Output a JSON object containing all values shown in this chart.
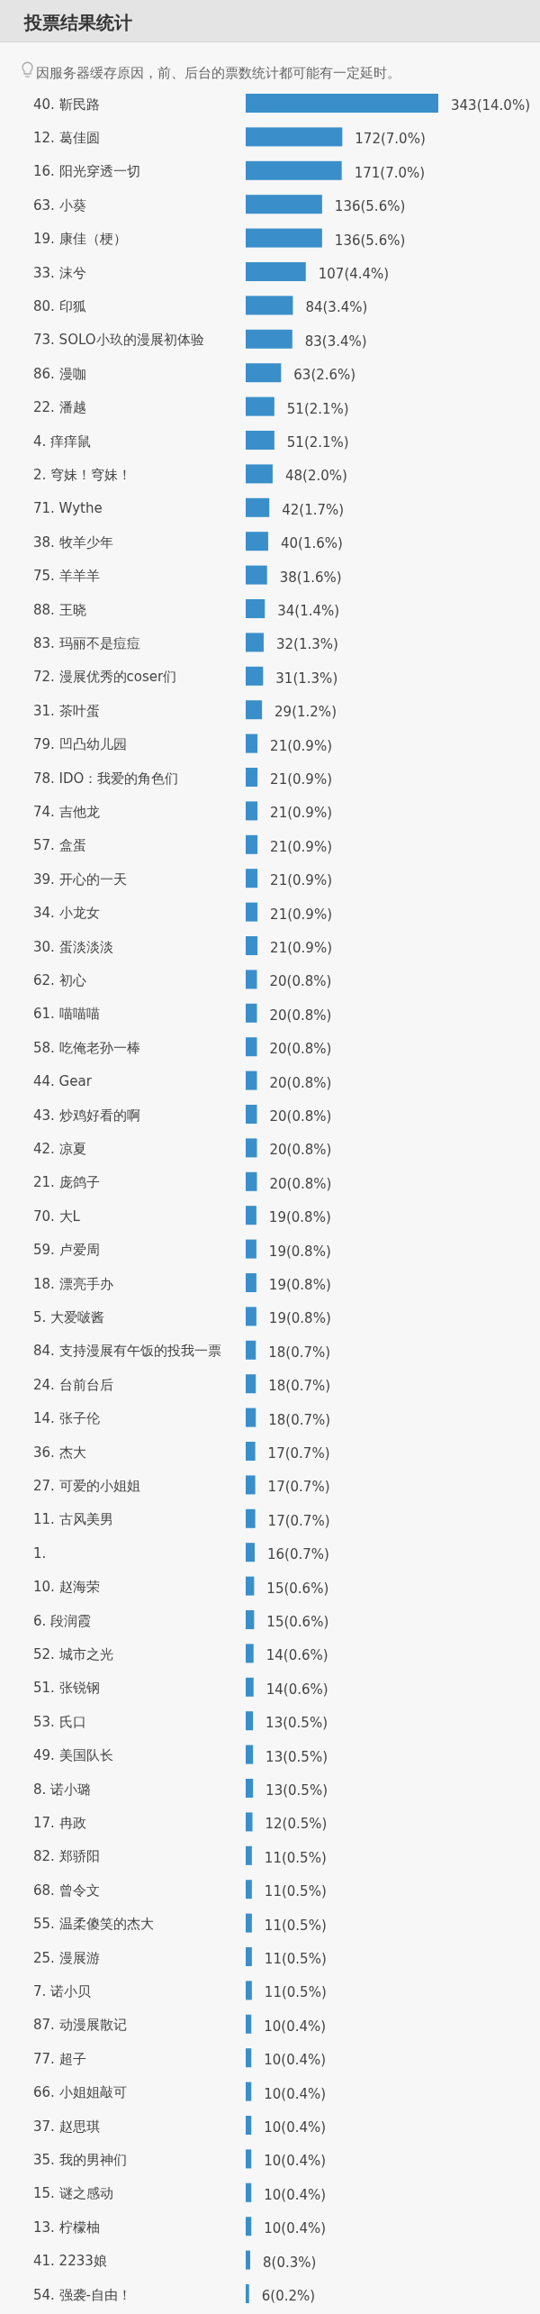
{
  "chart_data": {
    "type": "bar",
    "orientation": "horizontal",
    "title": "投票结果统计",
    "subtitle": "因服务器缓存原因，前、后台的票数统计都可能有一定延时。",
    "color": "#3a8fca",
    "categories": [
      "40. 靳民路",
      "12. 葛佳圆",
      "16. 阳光穿透一切",
      "63. 小葵",
      "19. 康佳（梗）",
      "33. 沫兮",
      "80. 印狐",
      "73. SOLO小玖的漫展初体验",
      "86. 漫咖",
      "22. 潘越",
      "4. 痒痒鼠",
      "2. 穹妹！穹妹！",
      "71. Wythe",
      "38. 牧羊少年",
      "75. 羊羊羊",
      "88. 王晓",
      "83. 玛丽不是痘痘",
      "72. 漫展优秀的coser们",
      "31. 茶叶蛋",
      "79. 凹凸幼儿园",
      "78. IDO：我爱的角色们",
      "74. 吉他龙",
      "57. 盒蛋",
      "39. 开心的一天",
      "34. 小龙女",
      "30. 蛋淡淡淡",
      "62. 初心",
      "61. 喵喵喵",
      "58. 吃俺老孙一棒",
      "44. Gear",
      "43. 炒鸡好看的啊",
      "42. 凉夏",
      "21. 庞鸽子",
      "70. 大L",
      "59. 卢爱周",
      "18. 漂亮手办",
      "5. 大爱啵酱",
      "84. 支持漫展有午饭的投我一票",
      "24. 台前台后",
      "14. 张子伦",
      "36. 杰大",
      "27. 可爱的小姐姐",
      "11. 古风美男",
      "1.",
      "10. 赵海荣",
      "6. 段润霞",
      "52. 城市之光",
      "51. 张锐钢",
      "53. 氏口",
      "49. 美国队长",
      "8. 诺小璐",
      "17. 冉政",
      "82. 郑骄阳",
      "68. 曾令文",
      "55. 温柔傻笑的杰大",
      "25. 漫展游",
      "7. 诺小贝",
      "87. 动漫展散记",
      "77. 超子",
      "66. 小姐姐敲可",
      "37. 赵思琪",
      "35. 我的男神们",
      "15. 谜之感动",
      "13. 柠檬柚",
      "41. 2233娘",
      "54. 强袭-自由！"
    ],
    "values": [
      343,
      172,
      171,
      136,
      136,
      107,
      84,
      83,
      63,
      51,
      51,
      48,
      42,
      40,
      38,
      34,
      32,
      31,
      29,
      21,
      21,
      21,
      21,
      21,
      21,
      21,
      20,
      20,
      20,
      20,
      20,
      20,
      20,
      19,
      19,
      19,
      19,
      18,
      18,
      18,
      17,
      17,
      17,
      16,
      15,
      15,
      14,
      14,
      13,
      13,
      13,
      12,
      11,
      11,
      11,
      11,
      11,
      10,
      10,
      10,
      10,
      10,
      10,
      10,
      8,
      6
    ],
    "value_labels": [
      "343(14.0%)",
      "172(7.0%)",
      "171(7.0%)",
      "136(5.6%)",
      "136(5.6%)",
      "107(4.4%)",
      "84(3.4%)",
      "83(3.4%)",
      "63(2.6%)",
      "51(2.1%)",
      "51(2.1%)",
      "48(2.0%)",
      "42(1.7%)",
      "40(1.6%)",
      "38(1.6%)",
      "34(1.4%)",
      "32(1.3%)",
      "31(1.3%)",
      "29(1.2%)",
      "21(0.9%)",
      "21(0.9%)",
      "21(0.9%)",
      "21(0.9%)",
      "21(0.9%)",
      "21(0.9%)",
      "21(0.9%)",
      "20(0.8%)",
      "20(0.8%)",
      "20(0.8%)",
      "20(0.8%)",
      "20(0.8%)",
      "20(0.8%)",
      "20(0.8%)",
      "19(0.8%)",
      "19(0.8%)",
      "19(0.8%)",
      "19(0.8%)",
      "18(0.7%)",
      "18(0.7%)",
      "18(0.7%)",
      "17(0.7%)",
      "17(0.7%)",
      "17(0.7%)",
      "16(0.7%)",
      "15(0.6%)",
      "15(0.6%)",
      "14(0.6%)",
      "14(0.6%)",
      "13(0.5%)",
      "13(0.5%)",
      "13(0.5%)",
      "12(0.5%)",
      "11(0.5%)",
      "11(0.5%)",
      "11(0.5%)",
      "11(0.5%)",
      "11(0.5%)",
      "10(0.4%)",
      "10(0.4%)",
      "10(0.4%)",
      "10(0.4%)",
      "10(0.4%)",
      "10(0.4%)",
      "10(0.4%)",
      "8(0.3%)",
      "6(0.2%)"
    ]
  }
}
